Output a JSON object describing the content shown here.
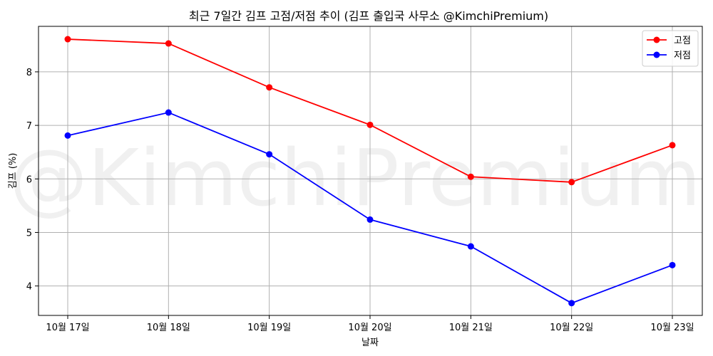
{
  "chart_data": {
    "type": "line",
    "title": "최근 7일간 김프 고점/저점 추이 (김프 출입국 사무소 @KimchiPremium)",
    "xlabel": "날짜",
    "ylabel": "김프 (%)",
    "watermark": "@KimchiPremium",
    "categories": [
      "10월 17일",
      "10월 18일",
      "10월 19일",
      "10월 20일",
      "10월 21일",
      "10월 22일",
      "10월 23일"
    ],
    "ylim": [
      3.45,
      8.85
    ],
    "yticks": [
      4,
      5,
      6,
      7,
      8
    ],
    "grid": true,
    "legend_position": "top-right",
    "series": [
      {
        "name": "고점",
        "color": "#ff0000",
        "values": [
          8.61,
          8.53,
          7.71,
          7.01,
          6.04,
          5.94,
          6.63
        ]
      },
      {
        "name": "저점",
        "color": "#0000ff",
        "values": [
          6.81,
          7.24,
          6.46,
          5.24,
          4.74,
          3.68,
          4.39
        ]
      }
    ]
  }
}
